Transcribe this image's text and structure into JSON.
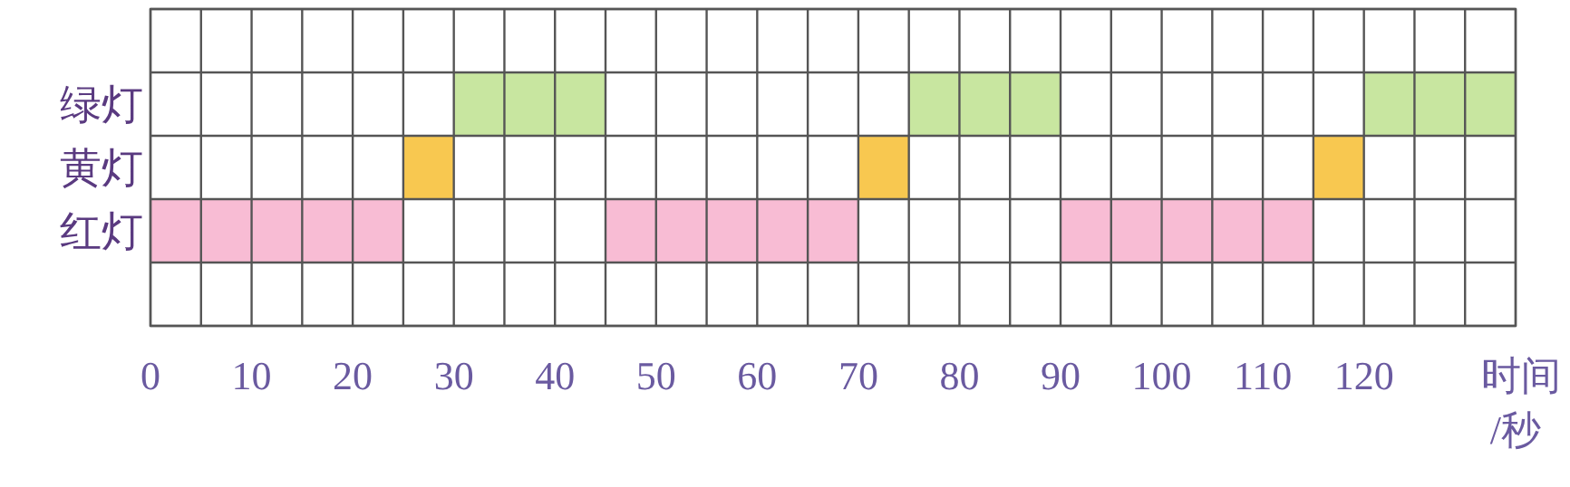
{
  "chart_data": {
    "type": "bar",
    "orientation": "horizontal",
    "categories": [
      null,
      "绿灯",
      "黄灯",
      "红灯",
      null
    ],
    "series": [
      {
        "values": [
          null,
          15,
          5,
          25,
          null
        ],
        "base": [
          null,
          30,
          25,
          0,
          null
        ],
        "colors": [
          null,
          "#c8e6a0",
          "#f8c850",
          "#f8bcd4",
          null
        ]
      },
      {
        "values": [
          null,
          15,
          5,
          25,
          null
        ],
        "base": [
          null,
          75,
          70,
          45,
          null
        ],
        "colors": [
          null,
          "#c8e6a0",
          "#f8c850",
          "#f8bcd4",
          null
        ]
      },
      {
        "values": [
          null,
          15,
          5,
          25,
          null
        ],
        "base": [
          null,
          120,
          115,
          90,
          null
        ],
        "colors": [
          null,
          "#c8e6a0",
          "#f8c850",
          "#f8bcd4",
          null
        ]
      }
    ],
    "xlim": [
      0,
      135
    ],
    "xticks": [
      0,
      {
        "value": 5,
        "label": null
      },
      10,
      {
        "value": 15,
        "label": null
      },
      20,
      {
        "value": 25,
        "label": null
      },
      30,
      {
        "value": 35,
        "label": null
      },
      40,
      {
        "value": 45,
        "label": null
      },
      50,
      {
        "value": 55,
        "label": null
      },
      60,
      {
        "value": 65,
        "label": null
      },
      70,
      {
        "value": 75,
        "label": null
      },
      80,
      {
        "value": 85,
        "label": null
      },
      90,
      {
        "value": 95,
        "label": null
      },
      100,
      {
        "value": 105,
        "label": null
      },
      110,
      {
        "value": 115,
        "label": null
      },
      120,
      {
        "value": 125,
        "label": null
      },
      {
        "value": 130,
        "label": null
      },
      {
        "value": 135,
        "label": null
      }
    ],
    "xlabel": "时间/秒",
    "grid": true
  }
}
